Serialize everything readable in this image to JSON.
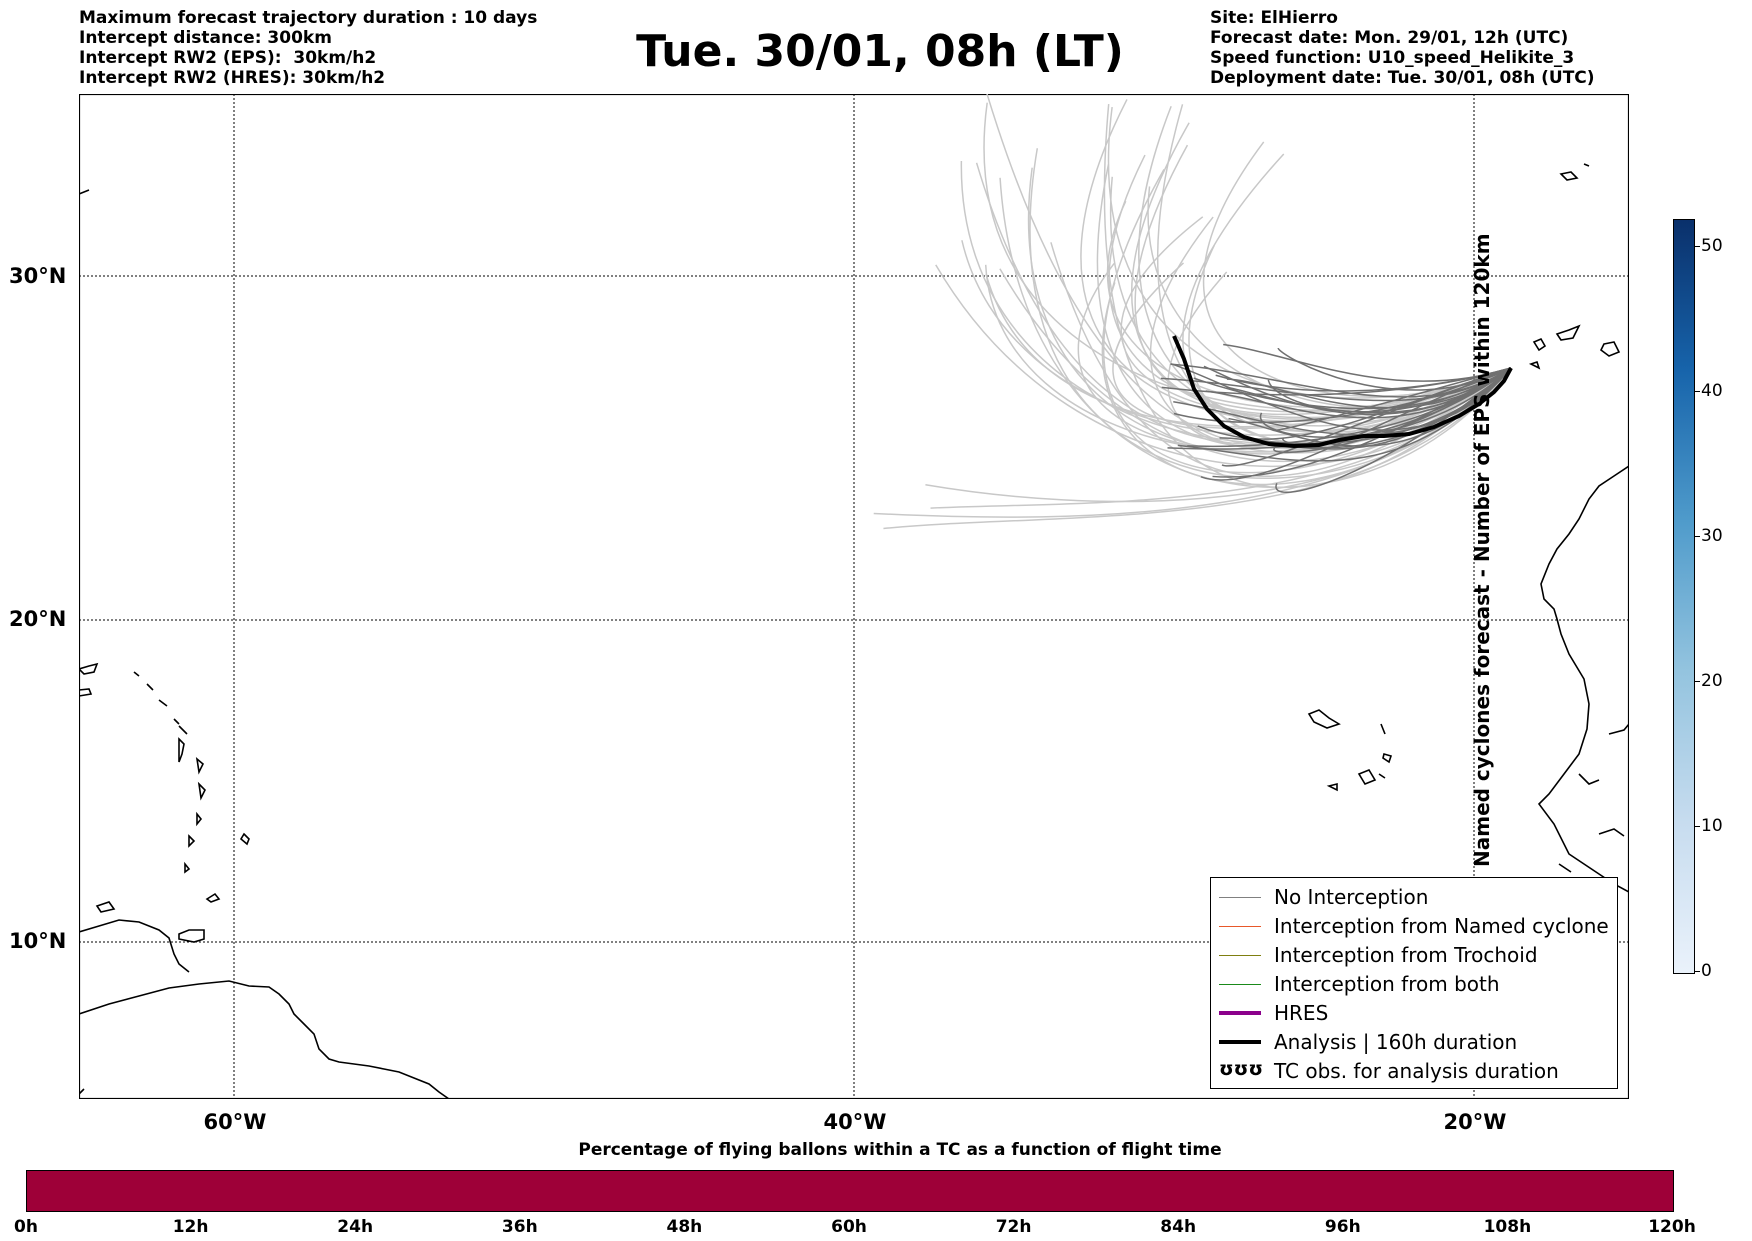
{
  "header_left": [
    "Maximum forecast trajectory duration : 10 days",
    "Intercept distance: 300km",
    "Intercept RW2 (EPS):  30km/h2",
    "Intercept RW2 (HRES): 30km/h2"
  ],
  "title": "Tue. 30/01, 08h (LT)",
  "header_right": [
    "Site: ElHierro",
    "Forecast date: Mon. 29/01, 12h (UTC)",
    "Speed function: U10_speed_Helikite_3",
    "Deployment date: Tue. 30/01, 08h (UTC)"
  ],
  "map": {
    "lat_labels": [
      "30°N",
      "20°N",
      "10°N"
    ],
    "lon_labels": [
      "60°W",
      "40°W",
      "20°W"
    ],
    "gridlines": true,
    "gridline_style": "dotted"
  },
  "legend": [
    {
      "label": "No Interception",
      "color": "#808080",
      "style": "thin"
    },
    {
      "label": "Interception from Named cyclone",
      "color": "#e8582a",
      "style": "thin"
    },
    {
      "label": "Interception from Trochoid",
      "color": "#7f7f10",
      "style": "thin"
    },
    {
      "label": "Interception from both",
      "color": "#1a8a1a",
      "style": "thin"
    },
    {
      "label": "HRES",
      "color": "#8b008b",
      "style": "thick"
    },
    {
      "label": "Analysis | 160h duration",
      "color": "#000000",
      "style": "thick"
    },
    {
      "label": "TC obs. for analysis duration",
      "color": "#000000",
      "style": "symbol",
      "symbol": "ʊʊʊ"
    }
  ],
  "colorbar_vertical": {
    "label": "Named cyclones forecast - Number of EPS within 120km",
    "ticks": [
      "0",
      "10",
      "20",
      "30",
      "40",
      "50"
    ]
  },
  "colorbar_horizontal": {
    "label": "Percentage of flying ballons within a TC as a function of flight time",
    "ticks": [
      "0h",
      "12h",
      "24h",
      "36h",
      "48h",
      "60h",
      "72h",
      "84h",
      "96h",
      "108h",
      "120h"
    ],
    "fill_color": "#9e0038"
  },
  "colors": {
    "eps_track_light": "#c8c8c8",
    "eps_track_dark": "#707070",
    "analysis_track": "#000000"
  }
}
